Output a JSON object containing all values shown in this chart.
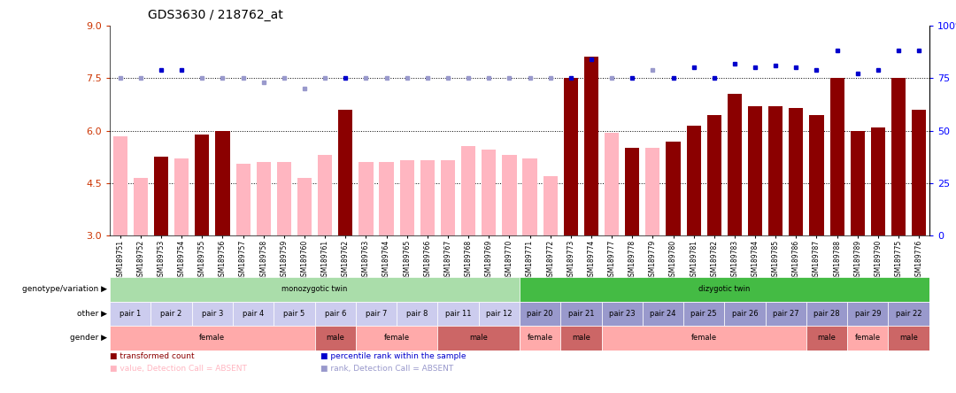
{
  "title": "GDS3630 / 218762_at",
  "samples": [
    "GSM189751",
    "GSM189752",
    "GSM189753",
    "GSM189754",
    "GSM189755",
    "GSM189756",
    "GSM189757",
    "GSM189758",
    "GSM189759",
    "GSM189760",
    "GSM189761",
    "GSM189762",
    "GSM189763",
    "GSM189764",
    "GSM189765",
    "GSM189766",
    "GSM189767",
    "GSM189768",
    "GSM189769",
    "GSM189770",
    "GSM189771",
    "GSM189772",
    "GSM189773",
    "GSM189774",
    "GSM189777",
    "GSM189778",
    "GSM189779",
    "GSM189780",
    "GSM189781",
    "GSM189782",
    "GSM189783",
    "GSM189784",
    "GSM189785",
    "GSM189786",
    "GSM189787",
    "GSM189788",
    "GSM189789",
    "GSM189790",
    "GSM189775",
    "GSM189776"
  ],
  "values": [
    5.85,
    4.65,
    5.25,
    5.2,
    5.9,
    6.0,
    5.05,
    5.1,
    5.1,
    4.65,
    5.3,
    6.6,
    5.1,
    5.1,
    5.15,
    5.15,
    5.15,
    5.55,
    5.45,
    5.3,
    5.2,
    4.7,
    7.5,
    8.1,
    5.95,
    5.5,
    5.5,
    5.7,
    6.15,
    6.45,
    7.05,
    6.7,
    6.7,
    6.65,
    6.45,
    7.5,
    6.0,
    6.1,
    7.5,
    6.6
  ],
  "absent": [
    true,
    true,
    false,
    true,
    false,
    false,
    true,
    true,
    true,
    true,
    true,
    false,
    true,
    true,
    true,
    true,
    true,
    true,
    true,
    true,
    true,
    true,
    false,
    false,
    true,
    false,
    true,
    false,
    false,
    false,
    false,
    false,
    false,
    false,
    false,
    false,
    false,
    false,
    false,
    false
  ],
  "percentile": [
    75,
    75,
    79,
    79,
    75,
    75,
    75,
    73,
    75,
    70,
    75,
    75,
    75,
    75,
    75,
    75,
    75,
    75,
    75,
    75,
    75,
    75,
    75,
    84,
    75,
    75,
    79,
    75,
    80,
    75,
    82,
    80,
    81,
    80,
    79,
    88,
    77,
    79,
    88,
    88
  ],
  "percentile_absent": [
    true,
    true,
    false,
    false,
    true,
    true,
    true,
    true,
    true,
    true,
    true,
    false,
    true,
    true,
    true,
    true,
    true,
    true,
    true,
    true,
    true,
    true,
    false,
    false,
    true,
    false,
    true,
    false,
    false,
    false,
    false,
    false,
    false,
    false,
    false,
    false,
    false,
    false,
    false,
    false
  ],
  "ylim_left": [
    3,
    9
  ],
  "ylim_right": [
    0,
    100
  ],
  "yticks_left": [
    3,
    4.5,
    6,
    7.5,
    9
  ],
  "yticks_right": [
    0,
    25,
    50,
    75,
    100
  ],
  "hlines": [
    4.5,
    6.0,
    7.5
  ],
  "bar_color_present": "#8B0000",
  "bar_color_absent": "#FFB6C1",
  "dot_color_present": "#0000CC",
  "dot_color_absent": "#9999CC",
  "title_fontsize": 10,
  "tick_fontsize": 5.5,
  "annotation_rows": {
    "genotype": {
      "label": "genotype/variation",
      "segments": [
        {
          "text": "monozygotic twin",
          "start": 0,
          "end": 19,
          "color": "#AADDAA"
        },
        {
          "text": "dizygotic twin",
          "start": 20,
          "end": 39,
          "color": "#44BB44"
        }
      ]
    },
    "other": {
      "label": "other",
      "segments": [
        {
          "text": "pair 1",
          "start": 0,
          "end": 1,
          "color": "#CCCCEE"
        },
        {
          "text": "pair 2",
          "start": 2,
          "end": 3,
          "color": "#CCCCEE"
        },
        {
          "text": "pair 3",
          "start": 4,
          "end": 5,
          "color": "#CCCCEE"
        },
        {
          "text": "pair 4",
          "start": 6,
          "end": 7,
          "color": "#CCCCEE"
        },
        {
          "text": "pair 5",
          "start": 8,
          "end": 9,
          "color": "#CCCCEE"
        },
        {
          "text": "pair 6",
          "start": 10,
          "end": 11,
          "color": "#CCCCEE"
        },
        {
          "text": "pair 7",
          "start": 12,
          "end": 13,
          "color": "#CCCCEE"
        },
        {
          "text": "pair 8",
          "start": 14,
          "end": 15,
          "color": "#CCCCEE"
        },
        {
          "text": "pair 11",
          "start": 16,
          "end": 17,
          "color": "#CCCCEE"
        },
        {
          "text": "pair 12",
          "start": 18,
          "end": 19,
          "color": "#CCCCEE"
        },
        {
          "text": "pair 20",
          "start": 20,
          "end": 21,
          "color": "#9999CC"
        },
        {
          "text": "pair 21",
          "start": 22,
          "end": 23,
          "color": "#9999CC"
        },
        {
          "text": "pair 23",
          "start": 24,
          "end": 25,
          "color": "#9999CC"
        },
        {
          "text": "pair 24",
          "start": 26,
          "end": 27,
          "color": "#9999CC"
        },
        {
          "text": "pair 25",
          "start": 28,
          "end": 29,
          "color": "#9999CC"
        },
        {
          "text": "pair 26",
          "start": 30,
          "end": 31,
          "color": "#9999CC"
        },
        {
          "text": "pair 27",
          "start": 32,
          "end": 33,
          "color": "#9999CC"
        },
        {
          "text": "pair 28",
          "start": 34,
          "end": 35,
          "color": "#9999CC"
        },
        {
          "text": "pair 29",
          "start": 36,
          "end": 37,
          "color": "#9999CC"
        },
        {
          "text": "pair 22",
          "start": 38,
          "end": 39,
          "color": "#9999CC"
        }
      ]
    },
    "gender": {
      "label": "gender",
      "segments": [
        {
          "text": "female",
          "start": 0,
          "end": 9,
          "color": "#FFAAAA"
        },
        {
          "text": "male",
          "start": 10,
          "end": 11,
          "color": "#CC6666"
        },
        {
          "text": "female",
          "start": 12,
          "end": 15,
          "color": "#FFAAAA"
        },
        {
          "text": "male",
          "start": 16,
          "end": 19,
          "color": "#CC6666"
        },
        {
          "text": "female",
          "start": 20,
          "end": 21,
          "color": "#FFAAAA"
        },
        {
          "text": "male",
          "start": 22,
          "end": 23,
          "color": "#CC6666"
        },
        {
          "text": "female",
          "start": 24,
          "end": 33,
          "color": "#FFAAAA"
        },
        {
          "text": "male",
          "start": 34,
          "end": 35,
          "color": "#CC6666"
        },
        {
          "text": "female",
          "start": 36,
          "end": 37,
          "color": "#FFAAAA"
        },
        {
          "text": "male",
          "start": 38,
          "end": 39,
          "color": "#CC6666"
        }
      ]
    }
  },
  "legend_items": [
    {
      "color": "#8B0000",
      "label": "transformed count"
    },
    {
      "color": "#0000CC",
      "label": "percentile rank within the sample"
    },
    {
      "color": "#FFB6C1",
      "label": "value, Detection Call = ABSENT"
    },
    {
      "color": "#9999CC",
      "label": "rank, Detection Call = ABSENT"
    }
  ]
}
